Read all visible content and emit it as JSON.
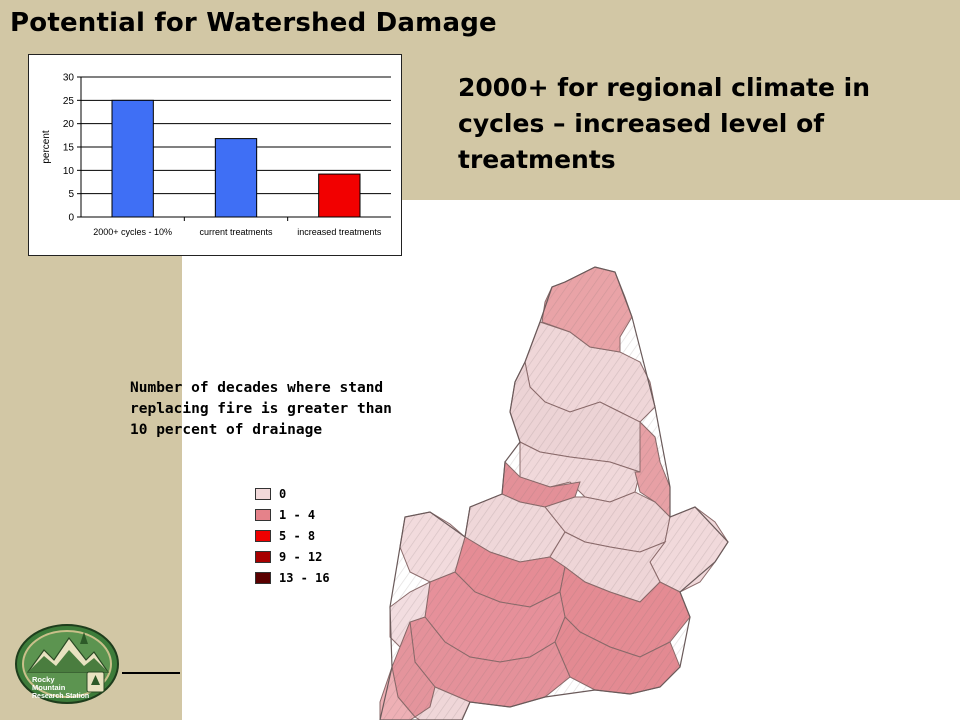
{
  "slide": {
    "title": "Potential for Watershed Damage",
    "subtitle": "2000+ for regional climate in cycles – increased level of treatments"
  },
  "chart_data": {
    "type": "bar",
    "categories": [
      "2000+ cycles - 10%",
      "current treatments",
      "increased treatments"
    ],
    "values": [
      25,
      16.8,
      9.2
    ],
    "bar_colors": [
      "#3f6ff5",
      "#3f6ff5",
      "#f20000"
    ],
    "ylabel": "percent",
    "ylim": [
      0,
      30
    ],
    "yticks": [
      "0",
      "5",
      "10",
      "15",
      "20",
      "25",
      "30"
    ],
    "grid": true,
    "legend": false
  },
  "map": {
    "caption": "Number of decades where stand replacing fire is greater than 10 percent of drainage",
    "legend": [
      {
        "label": "0",
        "color": "#f2d9da"
      },
      {
        "label": "1 - 4",
        "color": "#e5828a"
      },
      {
        "label": "5 - 8",
        "color": "#ee0000"
      },
      {
        "label": "9 - 12",
        "color": "#a80000"
      },
      {
        "label": "13 - 16",
        "color": "#5a0000"
      }
    ]
  },
  "logo": {
    "line1": "Rocky",
    "line2": "Mountain",
    "line3": "Research Station"
  }
}
